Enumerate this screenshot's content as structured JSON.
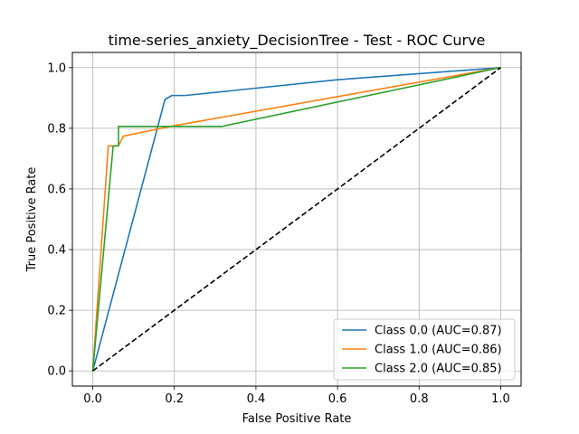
{
  "chart_data": {
    "type": "line",
    "title": "time-series_anxiety_DecisionTree - Test - ROC Curve",
    "xlabel": "False Positive Rate",
    "ylabel": "True Positive Rate",
    "xlim": [
      -0.05,
      1.05
    ],
    "ylim": [
      -0.05,
      1.05
    ],
    "xticks": [
      0.0,
      0.2,
      0.4,
      0.6,
      0.8,
      1.0
    ],
    "yticks": [
      0.0,
      0.2,
      0.4,
      0.6,
      0.8,
      1.0
    ],
    "xtick_labels": [
      "0.0",
      "0.2",
      "0.4",
      "0.6",
      "0.8",
      "1.0"
    ],
    "ytick_labels": [
      "0.0",
      "0.2",
      "0.4",
      "0.6",
      "0.8",
      "1.0"
    ],
    "grid": true,
    "legend_position": "lower-right",
    "series": [
      {
        "name": "Class 0.0 (AUC=0.87)",
        "color": "#1f77b4",
        "x": [
          0.0,
          0.177,
          0.194,
          0.226,
          0.6,
          1.0
        ],
        "y": [
          0.0,
          0.895,
          0.908,
          0.908,
          0.96,
          1.0
        ]
      },
      {
        "name": "Class 1.0 (AUC=0.86)",
        "color": "#ff7f0e",
        "x": [
          0.0,
          0.038,
          0.063,
          0.075,
          0.19,
          1.0
        ],
        "y": [
          0.0,
          0.742,
          0.742,
          0.774,
          0.806,
          1.0
        ]
      },
      {
        "name": "Class 2.0 (AUC=0.85)",
        "color": "#2ca02c",
        "x": [
          0.0,
          0.05,
          0.063,
          0.063,
          0.316,
          1.0
        ],
        "y": [
          0.0,
          0.742,
          0.742,
          0.806,
          0.806,
          1.0
        ]
      }
    ],
    "reference_line": {
      "color": "#000000",
      "style": "dashed",
      "x": [
        0.0,
        1.0
      ],
      "y": [
        0.0,
        1.0
      ]
    }
  }
}
